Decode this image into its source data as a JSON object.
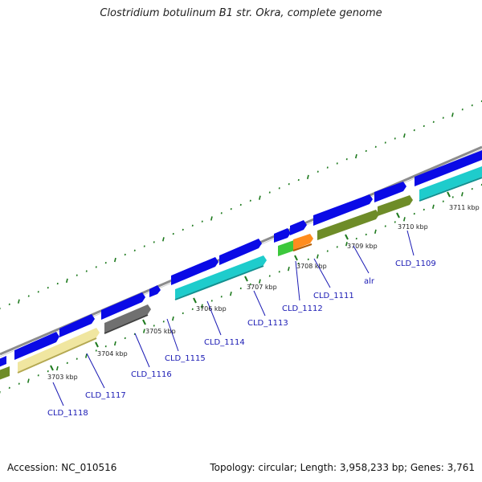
{
  "title": "Clostridium botulinum B1 str. Okra, complete genome",
  "footer": {
    "accession": "Accession: NC_010516",
    "topology": "Topology: circular; Length: 3,958,233 bp; Genes: 3,761"
  },
  "kbp_labels": [
    "3703 kbp",
    "3704 kbp",
    "3705 kbp",
    "3706 kbp",
    "3707 kbp",
    "3708 kbp",
    "3709 kbp",
    "3710 kbp",
    "3711 kbp"
  ],
  "gene_labels": [
    "CLD_1118",
    "CLD_1117",
    "CLD_1116",
    "CLD_1115",
    "CLD_1114",
    "CLD_1113",
    "CLD_1112",
    "CLD_1111",
    "alr",
    "CLD_1109"
  ],
  "colors": {
    "blue": "#0a0ae6",
    "cyan": "#1ecccc",
    "yellow": "#f0e6a0",
    "gray": "#707070",
    "olive": "#6e8c28",
    "green": "#3cc83c",
    "orange": "#ff8c1e",
    "backbone": "#8c8c8c",
    "tick": "#1e7a1e",
    "label": "#1a1ab4"
  }
}
